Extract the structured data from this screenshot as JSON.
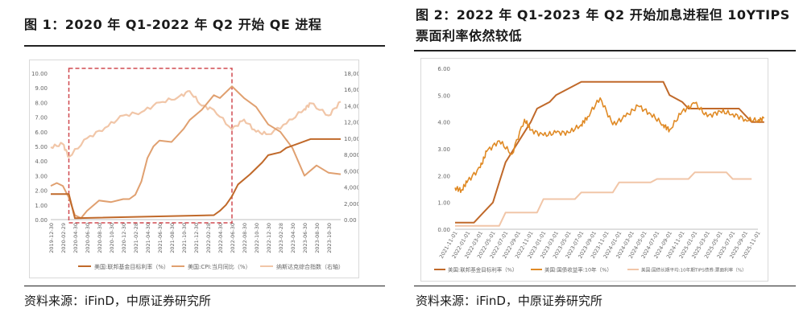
{
  "panels": {
    "left": {
      "title": "图 1：2020 年 Q1-2022 年 Q2 开始 QE 进程",
      "source": "资料来源：iFinD，中原证券研究所"
    },
    "right": {
      "title": "图 2：2022 年 Q1-2023 年 Q2 开始加息进程但 10YTIPS 票面利率依然较低",
      "source": "资料来源：iFinD，中原证券研究所"
    }
  },
  "colors": {
    "fed_rate": "#c0692a",
    "cpi": "#e0a070",
    "nasdaq": "#f1c6a8",
    "treasury10y": "#e08a25",
    "tips": "#f1c6a8",
    "highlight_box": "#d04a50"
  },
  "chart_data": [
    {
      "type": "line",
      "y_left_ticks": [
        "10.00",
        "9.00",
        "8.00",
        "7.00",
        "6.00",
        "5.00",
        "4.00",
        "3.00",
        "2.00",
        "1.00",
        "0.00"
      ],
      "y_right_ticks": [
        "18,000.00",
        "16,000.00",
        "14,000.00",
        "12,000.00",
        "10,000.00",
        "8,000.00",
        "6,000.00",
        "4,000.00",
        "2,000.00",
        "0.00"
      ],
      "ylim_left": [
        0,
        10
      ],
      "ylim_right": [
        0,
        18000
      ],
      "x_ticks": [
        "2019-12-30",
        "2020-02-29",
        "2020-04-30",
        "2020-06-30",
        "2020-08-30",
        "2020-10-30",
        "2020-12-30",
        "2021-02-28",
        "2021-04-30",
        "2021-06-30",
        "2021-08-30",
        "2021-10-30",
        "2021-12-30",
        "2022-02-28",
        "2022-04-30",
        "2022-06-30",
        "2022-08-30",
        "2022-10-30",
        "2022-12-30",
        "2023-02-28",
        "2023-04-30",
        "2023-06-30",
        "2023-08-30",
        "2023-10-30"
      ],
      "highlight_range": [
        "2020-03",
        "2022-06"
      ],
      "series": [
        {
          "name": "美国:联邦基金目标利率（%）",
          "axis": "left",
          "x": [
            "2019-12",
            "2020-03",
            "2020-04",
            "2022-03",
            "2022-04",
            "2022-05",
            "2022-06",
            "2022-07",
            "2022-09",
            "2022-11",
            "2022-12",
            "2023-02",
            "2023-03",
            "2023-05",
            "2023-07",
            "2023-12"
          ],
          "values": [
            1.75,
            1.75,
            0.1,
            0.3,
            0.6,
            1.0,
            1.6,
            2.4,
            3.1,
            3.9,
            4.4,
            4.6,
            4.9,
            5.2,
            5.5,
            5.5
          ]
        },
        {
          "name": "美国:CPI:当月同比（%）",
          "axis": "left",
          "x": [
            "2019-12",
            "2020-01",
            "2020-02",
            "2020-03",
            "2020-04",
            "2020-05",
            "2020-06",
            "2020-08",
            "2020-10",
            "2020-12",
            "2021-01",
            "2021-02",
            "2021-03",
            "2021-04",
            "2021-05",
            "2021-06",
            "2021-08",
            "2021-10",
            "2021-11",
            "2022-01",
            "2022-03",
            "2022-04",
            "2022-06",
            "2022-08",
            "2022-10",
            "2022-12",
            "2023-02",
            "2023-04",
            "2023-06",
            "2023-08",
            "2023-10",
            "2023-12"
          ],
          "values": [
            2.3,
            2.5,
            2.3,
            1.5,
            0.3,
            0.1,
            0.6,
            1.3,
            1.2,
            1.4,
            1.4,
            1.7,
            2.6,
            4.2,
            5.0,
            5.4,
            5.3,
            6.2,
            6.8,
            7.5,
            8.5,
            8.3,
            9.1,
            8.3,
            7.7,
            6.5,
            6.0,
            4.9,
            3.0,
            3.7,
            3.2,
            3.1
          ]
        },
        {
          "name": "纳斯达克综合指数（右轴）",
          "axis": "right",
          "x": [
            "2019-12",
            "2020-02",
            "2020-03",
            "2020-06",
            "2020-09",
            "2020-12",
            "2021-03",
            "2021-06",
            "2021-09",
            "2021-11",
            "2022-01",
            "2022-03",
            "2022-06",
            "2022-08",
            "2022-10",
            "2022-12",
            "2023-03",
            "2023-06",
            "2023-07",
            "2023-10",
            "2023-12"
          ],
          "values": [
            8900,
            9300,
            7700,
            10000,
            11300,
            12800,
            13200,
            14400,
            15000,
            15800,
            14000,
            13500,
            11100,
            12300,
            10800,
            10500,
            11800,
            13600,
            14300,
            12800,
            14500
          ]
        }
      ]
    },
    {
      "type": "line",
      "y_ticks": [
        "6.00",
        "5.00",
        "4.00",
        "3.00",
        "2.00",
        "1.00",
        "0.00"
      ],
      "ylim": [
        0,
        6
      ],
      "x_ticks": [
        "2021-11-01",
        "2022-01-01",
        "2022-03-01",
        "2022-05-01",
        "2022-07-01",
        "2022-09-01",
        "2022-11-01",
        "2023-01-01",
        "2023-03-01",
        "2023-05-01",
        "2023-07-01",
        "2023-09-01",
        "2023-11-01",
        "2024-01-01",
        "2024-03-01",
        "2024-05-01",
        "2024-07-01",
        "2024-09-01",
        "2024-11-01",
        "2025-01-01",
        "2025-03-01",
        "2025-05-01",
        "2025-07-01",
        "2025-09-01",
        "2025-11-01"
      ],
      "series": [
        {
          "name": "美国:联邦基金目标利率（%）",
          "x": [
            "2021-11",
            "2022-02",
            "2022-03",
            "2022-05",
            "2022-06",
            "2022-07",
            "2022-09",
            "2022-11",
            "2022-12",
            "2023-02",
            "2023-03",
            "2023-05",
            "2023-07",
            "2024-08",
            "2024-09",
            "2024-11",
            "2024-12",
            "2025-08",
            "2025-09",
            "2025-10",
            "2025-12"
          ],
          "values": [
            0.25,
            0.25,
            0.5,
            1.0,
            1.75,
            2.5,
            3.25,
            4.0,
            4.5,
            4.75,
            5.0,
            5.25,
            5.5,
            5.5,
            5.0,
            4.75,
            4.5,
            4.5,
            4.25,
            4.0,
            4.0
          ]
        },
        {
          "name": "美国:国债收益率:10年（%）",
          "x": [
            "2021-11",
            "2021-12",
            "2022-01",
            "2022-03",
            "2022-04",
            "2022-06",
            "2022-08",
            "2022-10",
            "2022-11",
            "2023-01",
            "2023-03",
            "2023-05",
            "2023-07",
            "2023-08",
            "2023-10",
            "2023-12",
            "2024-02",
            "2024-04",
            "2024-06",
            "2024-08",
            "2024-09",
            "2024-11",
            "2025-01",
            "2025-03",
            "2025-05",
            "2025-07",
            "2025-09",
            "2025-11",
            "2025-12"
          ],
          "values": [
            1.55,
            1.45,
            1.8,
            2.3,
            2.9,
            3.3,
            2.8,
            4.1,
            3.7,
            3.5,
            3.6,
            3.6,
            3.9,
            4.2,
            4.9,
            3.9,
            4.2,
            4.6,
            4.3,
            3.9,
            3.7,
            4.4,
            4.7,
            4.2,
            4.4,
            4.3,
            4.1,
            4.05,
            4.15
          ]
        },
        {
          "name": "美国:国债长期平均:10年期TIPS债券:票面利率（%）",
          "x": [
            "2021-11",
            "2022-01",
            "2022-06",
            "2022-07",
            "2022-12",
            "2023-01",
            "2023-06",
            "2023-07",
            "2023-12",
            "2024-01",
            "2024-06",
            "2024-07",
            "2024-12",
            "2025-01",
            "2025-06",
            "2025-07",
            "2025-10"
          ],
          "values": [
            0.125,
            0.125,
            0.125,
            0.625,
            0.625,
            1.125,
            1.125,
            1.375,
            1.375,
            1.75,
            1.75,
            1.875,
            1.875,
            2.125,
            2.125,
            1.875,
            1.875
          ]
        }
      ]
    }
  ]
}
